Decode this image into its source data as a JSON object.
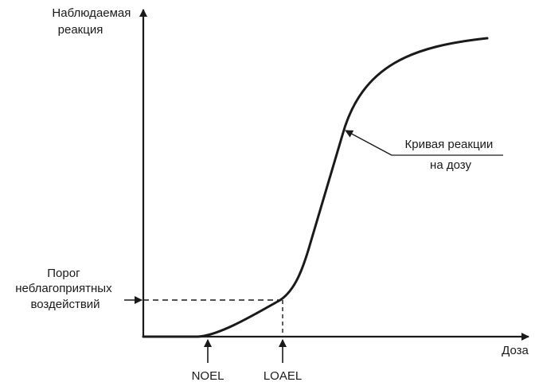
{
  "diagram": {
    "y_axis_label": [
      "Наблюдаемая",
      "реакция"
    ],
    "x_axis_label": "Доза",
    "curve_label": [
      "Кривая реакции",
      "на дозу"
    ],
    "threshold_label": [
      "Порог",
      "неблагоприятных",
      "воздействий"
    ],
    "markers": {
      "noel": "NOEL",
      "loael": "LOAEL"
    }
  }
}
